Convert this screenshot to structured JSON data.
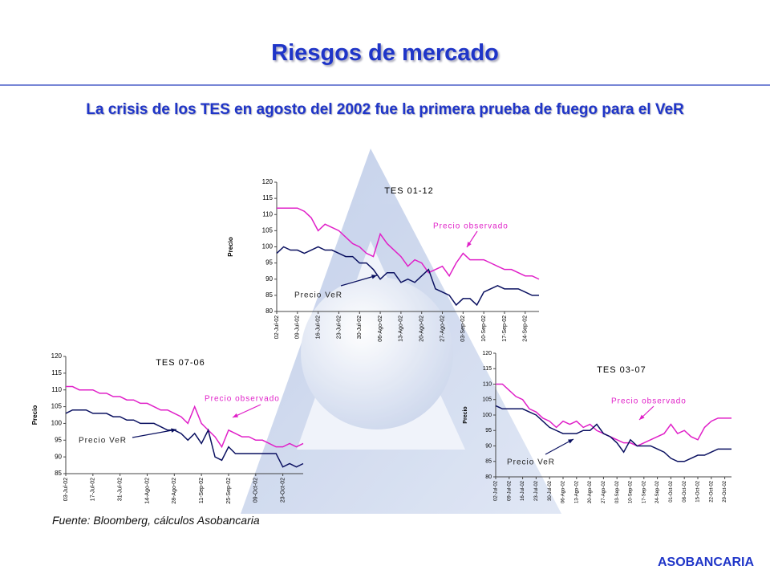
{
  "title": "Riesgos de mercado",
  "subtitle": "La crisis de los TES en agosto del 2002 fue la primera prueba de fuego para el VeR",
  "source": "Fuente: Bloomberg, cálculos Asobancaria",
  "footer": "ASOBANCARIA",
  "chart_data": [
    {
      "type": "line",
      "title": "TES 01-12",
      "y_label": "Precio",
      "categories": [
        "02-Jul-02",
        null,
        null,
        "09-Jul-02",
        null,
        null,
        "16-Jul-02",
        null,
        null,
        "23-Jul-02",
        null,
        null,
        "30-Jul-02",
        null,
        null,
        "06-Ago-02",
        null,
        null,
        "13-Ago-02",
        null,
        null,
        "20-Ago-02",
        null,
        null,
        "27-Ago-02",
        null,
        null,
        "03-Sep-02",
        null,
        null,
        "10-Sep-02",
        null,
        null,
        "17-Sep-02",
        null,
        null,
        "24-Sep-02",
        null,
        null
      ],
      "series": [
        {
          "name": "Precio observado",
          "color": "#e020c8",
          "values": [
            112,
            112,
            112,
            112,
            111,
            109,
            105,
            107,
            106,
            105,
            103,
            101,
            100,
            98,
            97,
            104,
            101,
            99,
            97,
            94,
            96,
            95,
            92,
            93,
            94,
            91,
            95,
            98,
            96,
            96,
            96,
            95,
            94,
            93,
            93,
            92,
            91,
            91,
            90
          ]
        },
        {
          "name": "Precio VeR",
          "color": "#0a1060",
          "values": [
            98,
            100,
            99,
            99,
            98,
            99,
            100,
            99,
            99,
            98,
            97,
            97,
            95,
            95,
            93,
            90,
            92,
            92,
            89,
            90,
            89,
            91,
            93,
            87,
            86,
            85,
            82,
            84,
            84,
            82,
            86,
            87,
            88,
            87,
            87,
            87,
            86,
            85,
            85
          ]
        }
      ],
      "ylim": [
        80,
        120
      ],
      "yticks": [
        80,
        85,
        90,
        95,
        100,
        105,
        110,
        115,
        120
      ]
    },
    {
      "type": "line",
      "title": "TES 07-06",
      "y_label": "Precio",
      "categories": [
        "03-Jul-02",
        null,
        null,
        null,
        "17-Jul-02",
        null,
        null,
        null,
        "31-Jul-02",
        null,
        null,
        null,
        "14-Ago-02",
        null,
        null,
        null,
        "28-Ago-02",
        null,
        null,
        null,
        "11-Sep-02",
        null,
        null,
        null,
        "25-Sep-02",
        null,
        null,
        null,
        "09-Oct-02",
        null,
        null,
        null,
        "23-Oct-02",
        null,
        null,
        null
      ],
      "series": [
        {
          "name": "Precio observado",
          "color": "#e020c8",
          "values": [
            111,
            111,
            110,
            110,
            110,
            109,
            109,
            108,
            108,
            107,
            107,
            106,
            106,
            105,
            104,
            104,
            103,
            102,
            100,
            105,
            100,
            98,
            96,
            93,
            98,
            97,
            96,
            96,
            95,
            95,
            94,
            93,
            93,
            94,
            93,
            94
          ]
        },
        {
          "name": "Precio VeR",
          "color": "#0a1060",
          "values": [
            103,
            104,
            104,
            104,
            103,
            103,
            103,
            102,
            102,
            101,
            101,
            100,
            100,
            100,
            99,
            98,
            98,
            97,
            95,
            97,
            94,
            98,
            90,
            89,
            93,
            91,
            91,
            91,
            91,
            91,
            91,
            91,
            87,
            88,
            87,
            88
          ]
        }
      ],
      "ylim": [
        85,
        120
      ],
      "yticks": [
        85,
        90,
        95,
        100,
        105,
        110,
        115,
        120
      ]
    },
    {
      "type": "line",
      "title": "TES 03-07",
      "y_label": "Precio",
      "categories": [
        "02-Jul-02",
        null,
        "09-Jul-02",
        null,
        "16-Jul-02",
        null,
        "23-Jul-02",
        null,
        "30-Jul-02",
        null,
        "06-Ago-02",
        null,
        "13-Ago-02",
        null,
        "20-Ago-02",
        null,
        "27-Ago-02",
        null,
        "03-Sep-02",
        null,
        "10-Sep-02",
        null,
        "17-Sep-02",
        null,
        "24-Sep-02",
        null,
        "01-Oct-02",
        null,
        "08-Oct-02",
        null,
        "15-Oct-02",
        null,
        "22-Oct-02",
        null,
        "29-Oct-02",
        null
      ],
      "series": [
        {
          "name": "Precio observado",
          "color": "#e020c8",
          "values": [
            110,
            110,
            108,
            106,
            105,
            102,
            101,
            99,
            98,
            96,
            98,
            97,
            98,
            96,
            97,
            95,
            94,
            93,
            92,
            91,
            91,
            90,
            91,
            92,
            93,
            94,
            97,
            94,
            95,
            93,
            92,
            96,
            98,
            99,
            99,
            99
          ]
        },
        {
          "name": "Precio VeR",
          "color": "#0a1060",
          "values": [
            103,
            102,
            102,
            102,
            102,
            101,
            100,
            98,
            96,
            95,
            94,
            94,
            94,
            95,
            95,
            97,
            94,
            93,
            91,
            88,
            92,
            90,
            90,
            90,
            89,
            88,
            86,
            85,
            85,
            86,
            87,
            87,
            88,
            89,
            89,
            89
          ]
        }
      ],
      "ylim": [
        80,
        120
      ],
      "yticks": [
        80,
        85,
        90,
        95,
        100,
        105,
        110,
        115,
        120
      ]
    }
  ]
}
